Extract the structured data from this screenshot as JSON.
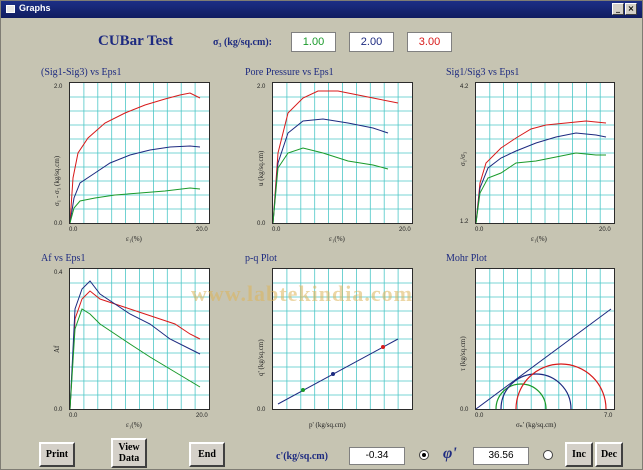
{
  "window": {
    "title": "Graphs"
  },
  "header": {
    "title": "CUBar Test",
    "sigma_label": "σ₃ (kg/sq.cm):",
    "sigma_values": [
      "1.00",
      "2.00",
      "3.00"
    ],
    "sigma_colors": [
      "#1a9a2a",
      "#1d2a80",
      "#d81a1a"
    ]
  },
  "panels": [
    {
      "title": "(Sig1-Sig3) vs Eps1",
      "ytop": "2.0",
      "ybot": "0.0",
      "xleft": "0.0",
      "xright": "20.0",
      "ylabel": "σ₁ - σ₃ (kg/sq.cm)",
      "xlabel": "ε₁(%)"
    },
    {
      "title": "Pore Pressure vs Eps1",
      "ytop": "2.0",
      "ybot": "0.0",
      "xleft": "0.0",
      "xright": "20.0",
      "ylabel": "u (kg/sq.cm)",
      "xlabel": "ε₁(%)"
    },
    {
      "title": "Sig1/Sig3 vs Eps1",
      "ytop": "4.2",
      "ybot": "1.2",
      "xleft": "0.0",
      "xright": "20.0",
      "ylabel": "σ₁/σ₃",
      "xlabel": "ε₁(%)"
    },
    {
      "title": "Af vs Eps1",
      "ytop": "0.4",
      "ybot": "0.0",
      "xleft": "0.0",
      "xright": "20.0",
      "ylabel": "Af",
      "xlabel": "ε₁(%)"
    },
    {
      "title": "p-q Plot",
      "ytop": "",
      "ybot": "0.0",
      "xleft": "",
      "xright": "",
      "ylabel": "q' (kg/sq.cm)",
      "xlabel": "p' (kg/sq.cm)"
    },
    {
      "title": "Mohr Plot",
      "ytop": "",
      "ybot": "0.0",
      "xleft": "0.0",
      "xright": "7.0",
      "ylabel": "τ (kg/sq.cm)",
      "xlabel": "σₙ' (kg/sq.cm)"
    }
  ],
  "watermark": "www.labtekindia.com",
  "buttons": {
    "print": "Print",
    "view_data": "View Data",
    "end": "End",
    "inc": "Inc",
    "dec": "Dec"
  },
  "bottom": {
    "c_label": "c'(kg/sq.cm)",
    "c_value": "-0.34",
    "phi_symbol": "φ'",
    "phi_value": "36.56"
  }
}
